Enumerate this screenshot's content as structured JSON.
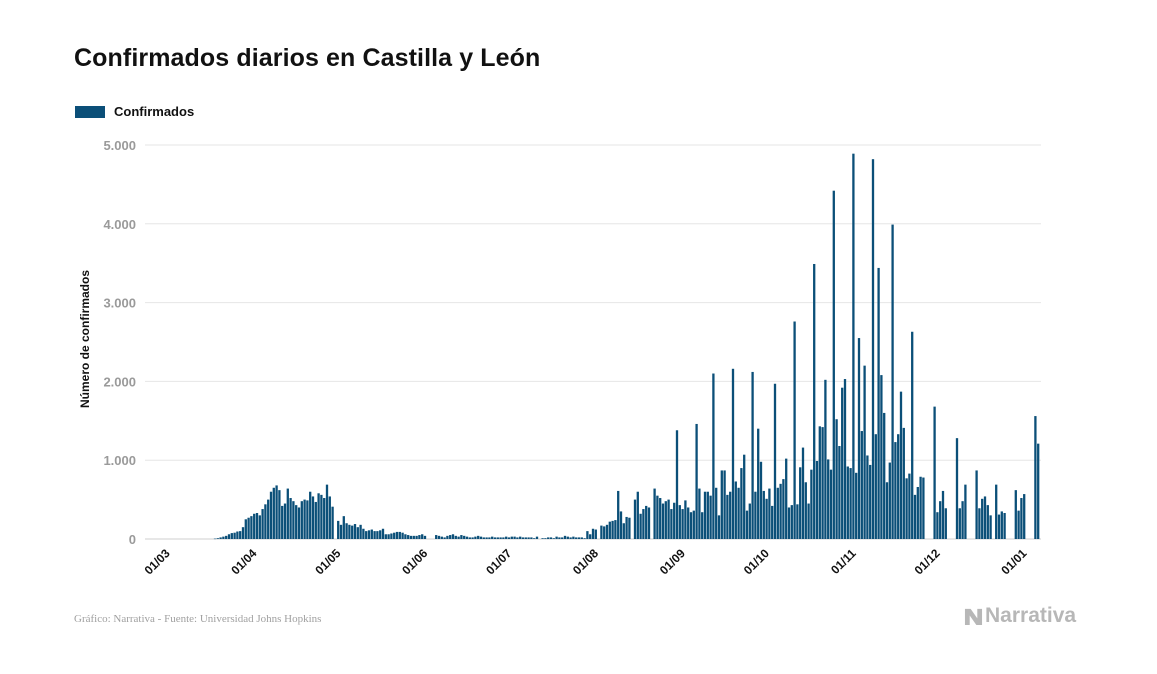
{
  "header": {
    "title": "Confirmados diarios en Castilla y León"
  },
  "legend": {
    "label": "Confirmados"
  },
  "footer": {
    "source": "Gráfico: Narrativa - Fuente: Universidad Johns Hopkins",
    "brand": "Narrativa"
  },
  "colors": {
    "bar": "#0b4f78",
    "grid": "#e6e6e6",
    "brand": "#b7b7b7"
  },
  "icons": {
    "brand_logo": "narrativa-logo-icon"
  },
  "chart_data": {
    "type": "bar",
    "title": "Confirmados diarios en Castilla y León",
    "xlabel": "",
    "ylabel": "Número de confirmados",
    "ylim": [
      0,
      5000
    ],
    "yticks": [
      0,
      1000,
      2000,
      3000,
      4000,
      5000
    ],
    "ytick_labels": [
      "0",
      "1.000",
      "2.000",
      "3.000",
      "4.000",
      "5.000"
    ],
    "xtick_labels": [
      "01/03",
      "01/04",
      "01/05",
      "01/06",
      "01/07",
      "01/08",
      "01/09",
      "01/10",
      "01/11",
      "01/12",
      "01/01"
    ],
    "grid": true,
    "legend_position": "top-left",
    "series": [
      {
        "name": "Confirmados",
        "segments": [
          {
            "start": "2020-03-01",
            "values": [
              0,
              0,
              0,
              0,
              0,
              0,
              0,
              0,
              0,
              0,
              0,
              0,
              0,
              0,
              0,
              0,
              0,
              0,
              5,
              10,
              20,
              30,
              40,
              60,
              75,
              80,
              95,
              100,
              150,
              250,
              270,
              290,
              320,
              330,
              300,
              380,
              440,
              500,
              600,
              650,
              680,
              620,
              420,
              450,
              640,
              520,
              480,
              430,
              400,
              480,
              500,
              490,
              600,
              540,
              470,
              580,
              560,
              520,
              690,
              540,
              410
            ]
          },
          {
            "start": "2020-05-02",
            "values": [
              230,
              180,
              290,
              200,
              180,
              170,
              190,
              150,
              180,
              130,
              100,
              110,
              120,
              100,
              100,
              110,
              130,
              60,
              60,
              70,
              80,
              90,
              90,
              80,
              60,
              50,
              40,
              40,
              40,
              50,
              60,
              40
            ]
          },
          {
            "start": "2020-06-03",
            "values": [
              0,
              0,
              0,
              50,
              40,
              30,
              20,
              40,
              50,
              60,
              40,
              30,
              50,
              40,
              30,
              20,
              20,
              30,
              40,
              30,
              20,
              20,
              20,
              30,
              20,
              20,
              20,
              20,
              30,
              20,
              30,
              30,
              20,
              30,
              20,
              20,
              20,
              20,
              10,
              30
            ]
          },
          {
            "start": "2020-07-14",
            "values": [
              10,
              10,
              20,
              20,
              10,
              30,
              20,
              20,
              40,
              30,
              20,
              30,
              20,
              20,
              20,
              10,
              100,
              60,
              130,
              120,
              0,
              170,
              160,
              180,
              220,
              230
            ]
          },
          {
            "start": "2020-08-08",
            "values": [
              0,
              240,
              610,
              350,
              200,
              280,
              270,
              0,
              500,
              600,
              320,
              380,
              420,
              400,
              0,
              640,
              550,
              520,
              450,
              480,
              500,
              380,
              460,
              1380,
              430,
              380,
              490,
              400,
              340,
              360,
              1460,
              640,
              340,
              600,
              600,
              550,
              2100,
              650,
              300,
              870,
              870,
              560,
              600,
              2160,
              730,
              650,
              900,
              1070,
              360,
              450,
              2120,
              600,
              1400,
              980,
              610,
              510,
              640,
              420,
              1970,
              650,
              700,
              760,
              1020,
              400,
              430,
              2760,
              440,
              910,
              1160,
              720,
              450,
              880,
              3490,
              990,
              1430,
              1420,
              2020,
              1010,
              880,
              4420,
              1520,
              1180,
              1920,
              2030,
              920,
              900,
              4890,
              840,
              2550,
              1370,
              2200,
              1060,
              940,
              4820,
              1330,
              3440,
              2080,
              1600,
              720,
              970,
              3990,
              1230,
              1330,
              1870,
              1410,
              770,
              830,
              2630,
              560,
              660,
              790,
              780,
              0,
              0,
              0,
              1680,
              340,
              480,
              610,
              390,
              0,
              0,
              0,
              1280,
              390,
              480,
              690,
              0,
              0,
              0,
              870,
              390,
              510,
              540,
              430,
              300,
              0,
              690,
              310,
              350,
              330,
              0,
              0,
              0,
              620,
              360,
              520,
              570,
              0,
              0,
              0,
              1560,
              1210
            ]
          }
        ]
      }
    ]
  }
}
